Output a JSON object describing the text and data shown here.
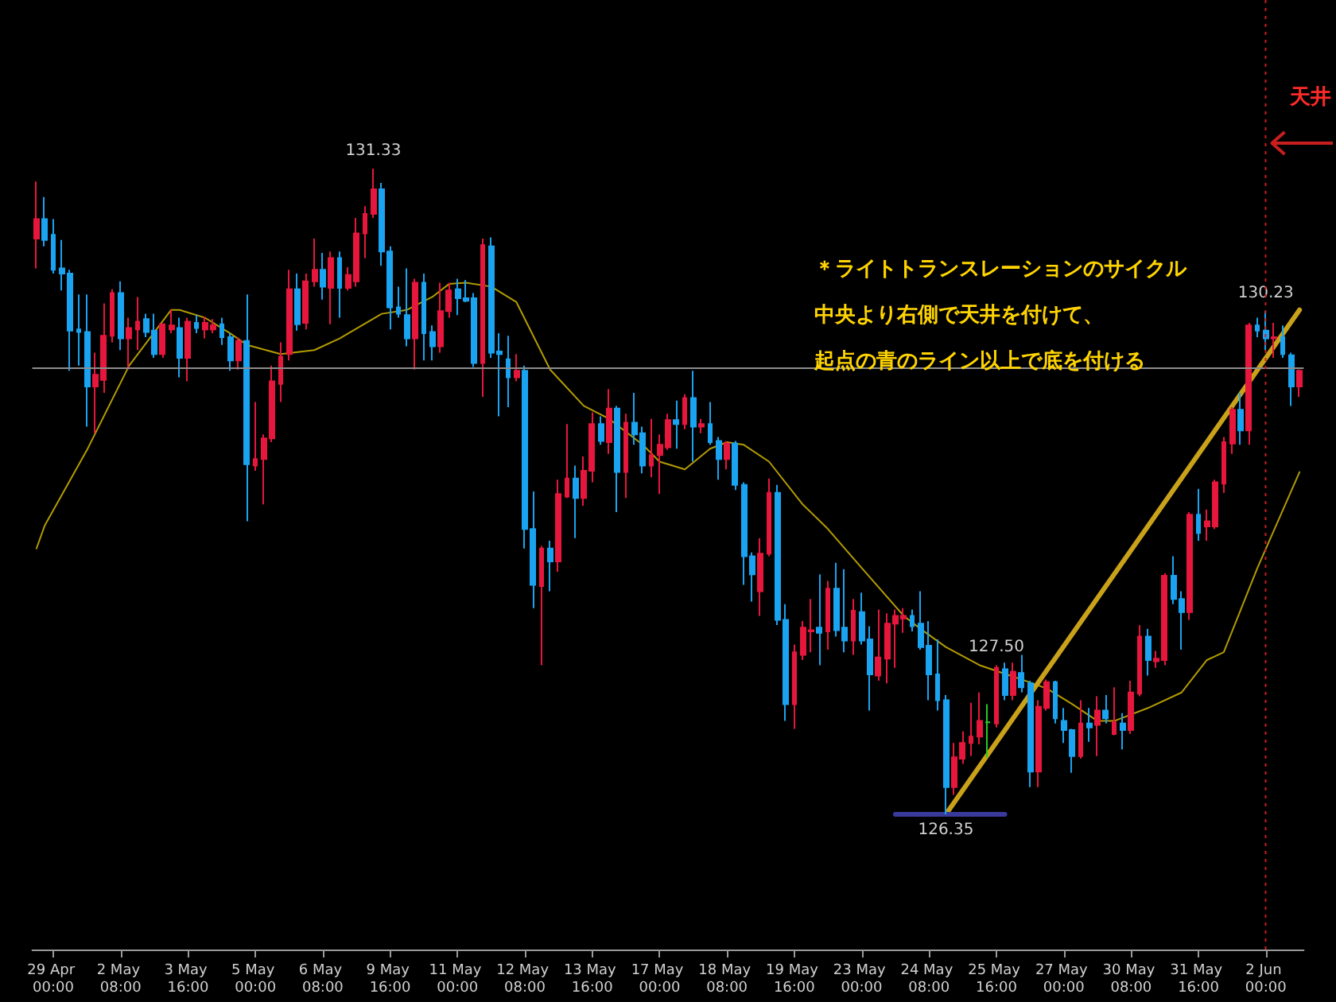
{
  "chart_data": {
    "type": "candlestick",
    "categories": [
      null,
      null,
      "29 Apr 00:00",
      null,
      null,
      null,
      null,
      null,
      null,
      null,
      "2 May 08:00",
      null,
      null,
      null,
      null,
      null,
      null,
      null,
      "3 May 16:00",
      null,
      null,
      null,
      null,
      null,
      null,
      null,
      "5 May 00:00",
      null,
      null,
      null,
      null,
      null,
      null,
      null,
      "6 May 08:00",
      null,
      null,
      null,
      null,
      null,
      null,
      null,
      "9 May 16:00",
      null,
      null,
      null,
      null,
      null,
      null,
      null,
      "11 May 00:00",
      null,
      null,
      null,
      null,
      null,
      null,
      null,
      "12 May 08:00",
      null,
      null,
      null,
      null,
      null,
      null,
      null,
      "13 May 16:00",
      null,
      null,
      null,
      null,
      null,
      null,
      null,
      "17 May 00:00",
      null,
      null,
      null,
      null,
      null,
      null,
      null,
      "18 May 08:00",
      null,
      null,
      null,
      null,
      null,
      null,
      null,
      "19 May 16:00",
      null,
      null,
      null,
      null,
      null,
      null,
      null,
      "23 May 00:00",
      null,
      null,
      null,
      null,
      null,
      null,
      null,
      "24 May 08:00",
      null,
      null,
      null,
      null,
      null,
      null,
      null,
      "25 May 16:00",
      null,
      null,
      null,
      null,
      null,
      null,
      null,
      "27 May 00:00",
      null,
      null,
      null,
      null,
      null,
      null,
      null,
      "30 May 08:00",
      null,
      null,
      null,
      null,
      null,
      null,
      null,
      "31 May 16:00",
      null,
      null,
      null,
      null,
      null,
      null,
      null,
      "2 Jun 00:00",
      null,
      null,
      null,
      null
    ],
    "series": [
      {
        "ohlc": [
          [
            130.79,
            131.23,
            130.56,
            130.94
          ],
          [
            130.94,
            131.11,
            130.73,
            130.78
          ],
          [
            130.82,
            130.94,
            130.52,
            130.55
          ],
          [
            130.56,
            130.78,
            130.39,
            130.52
          ],
          [
            130.52,
            130.55,
            129.77,
            130.08
          ],
          [
            130.09,
            130.36,
            129.81,
            130.07
          ],
          [
            130.07,
            130.36,
            129.34,
            129.65
          ],
          [
            129.65,
            129.91,
            129.29,
            129.74
          ],
          [
            129.7,
            130.29,
            129.6,
            130.04
          ],
          [
            130.04,
            130.4,
            129.99,
            130.37
          ],
          [
            130.37,
            130.46,
            129.93,
            130.02
          ],
          [
            130.02,
            130.18,
            129.78,
            130.1
          ],
          [
            130.09,
            130.34,
            129.93,
            130.15
          ],
          [
            130.17,
            130.21,
            130.03,
            130.07
          ],
          [
            130.08,
            130.21,
            129.87,
            129.9
          ],
          [
            129.9,
            130.13,
            129.87,
            130.13
          ],
          [
            130.09,
            130.24,
            130.06,
            130.12
          ],
          [
            130.1,
            130.18,
            129.72,
            129.87
          ],
          [
            129.87,
            130.18,
            129.69,
            130.15
          ],
          [
            130.14,
            130.2,
            130.06,
            130.1
          ],
          [
            130.09,
            130.19,
            130.02,
            130.14
          ],
          [
            130.09,
            130.17,
            130.06,
            130.12
          ],
          [
            130.13,
            130.18,
            129.97,
            130.03
          ],
          [
            130.03,
            130.06,
            129.77,
            129.85
          ],
          [
            129.85,
            130.03,
            129.78,
            130.0
          ],
          [
            130.0,
            130.36,
            128.61,
            129.05
          ],
          [
            129.04,
            129.53,
            129.0,
            129.09
          ],
          [
            129.09,
            129.28,
            128.74,
            129.25
          ],
          [
            129.25,
            129.81,
            129.22,
            129.69
          ],
          [
            129.67,
            129.99,
            129.53,
            129.88
          ],
          [
            129.9,
            130.55,
            129.85,
            130.4
          ],
          [
            130.4,
            130.52,
            130.08,
            130.13
          ],
          [
            130.14,
            130.52,
            130.09,
            130.46
          ],
          [
            130.46,
            130.79,
            130.42,
            130.55
          ],
          [
            130.55,
            130.68,
            130.32,
            130.42
          ],
          [
            130.41,
            130.69,
            130.13,
            130.64
          ],
          [
            130.64,
            130.69,
            130.18,
            130.41
          ],
          [
            130.41,
            130.57,
            130.39,
            130.51
          ],
          [
            130.46,
            130.95,
            130.42,
            130.83
          ],
          [
            130.83,
            131.04,
            130.64,
            130.98
          ],
          [
            130.98,
            131.33,
            130.95,
            131.17
          ],
          [
            131.17,
            131.22,
            130.58,
            130.69
          ],
          [
            130.69,
            130.73,
            130.09,
            130.26
          ],
          [
            130.26,
            130.42,
            130.18,
            130.21
          ],
          [
            130.2,
            130.56,
            129.96,
            130.02
          ],
          [
            130.02,
            130.48,
            129.78,
            130.45
          ],
          [
            130.45,
            130.52,
            129.85,
            130.06
          ],
          [
            130.07,
            130.12,
            129.85,
            129.96
          ],
          [
            129.96,
            130.45,
            129.91,
            130.23
          ],
          [
            130.23,
            130.45,
            130.18,
            130.39
          ],
          [
            130.4,
            130.48,
            130.2,
            130.33
          ],
          [
            130.33,
            130.47,
            130.3,
            130.31
          ],
          [
            130.33,
            130.37,
            129.8,
            129.83
          ],
          [
            129.83,
            130.79,
            129.57,
            130.74
          ],
          [
            130.73,
            130.8,
            129.87,
            129.91
          ],
          [
            129.92,
            130.06,
            129.42,
            129.9
          ],
          [
            129.86,
            130.04,
            129.49,
            129.72
          ],
          [
            129.72,
            129.9,
            129.69,
            129.77
          ],
          [
            129.77,
            129.81,
            128.4,
            128.55
          ],
          [
            128.55,
            128.84,
            127.94,
            128.12
          ],
          [
            128.11,
            128.42,
            127.5,
            128.4
          ],
          [
            128.4,
            128.46,
            128.07,
            128.3
          ],
          [
            128.3,
            128.93,
            128.22,
            128.82
          ],
          [
            128.8,
            129.36,
            128.79,
            128.94
          ],
          [
            128.94,
            129.04,
            128.48,
            128.79
          ],
          [
            128.79,
            129.11,
            128.73,
            129.0
          ],
          [
            129.0,
            129.45,
            128.91,
            129.36
          ],
          [
            129.36,
            129.42,
            129.2,
            129.23
          ],
          [
            129.22,
            129.63,
            129.13,
            129.48
          ],
          [
            129.48,
            129.5,
            128.68,
            128.99
          ],
          [
            128.99,
            129.44,
            128.79,
            129.37
          ],
          [
            129.37,
            129.6,
            129.2,
            129.28
          ],
          [
            129.29,
            129.34,
            128.98,
            129.04
          ],
          [
            129.04,
            129.4,
            128.95,
            129.12
          ],
          [
            129.12,
            129.28,
            128.82,
            129.2
          ],
          [
            129.18,
            129.44,
            129.16,
            129.39
          ],
          [
            129.39,
            129.54,
            129.17,
            129.36
          ],
          [
            129.36,
            129.59,
            129.32,
            129.56
          ],
          [
            129.56,
            129.77,
            129.07,
            129.34
          ],
          [
            129.34,
            129.4,
            129.29,
            129.36
          ],
          [
            129.36,
            129.53,
            129.2,
            129.22
          ],
          [
            129.23,
            129.26,
            128.93,
            129.09
          ],
          [
            129.09,
            129.23,
            129.01,
            129.21
          ],
          [
            129.21,
            129.23,
            128.85,
            128.89
          ],
          [
            128.89,
            128.91,
            128.12,
            128.34
          ],
          [
            128.34,
            128.37,
            127.99,
            128.2
          ],
          [
            128.07,
            128.48,
            127.88,
            128.36
          ],
          [
            128.36,
            128.94,
            128.34,
            128.83
          ],
          [
            128.83,
            128.89,
            127.81,
            127.85
          ],
          [
            127.85,
            127.97,
            127.07,
            127.2
          ],
          [
            127.2,
            127.66,
            127.01,
            127.6
          ],
          [
            127.58,
            127.84,
            127.54,
            127.79
          ],
          [
            127.76,
            128.01,
            127.6,
            127.77
          ],
          [
            127.79,
            128.2,
            127.5,
            127.75
          ],
          [
            127.76,
            128.15,
            127.62,
            128.09
          ],
          [
            128.09,
            128.29,
            127.72,
            127.77
          ],
          [
            127.79,
            128.24,
            127.6,
            127.69
          ],
          [
            127.69,
            128.01,
            127.58,
            127.92
          ],
          [
            127.91,
            128.06,
            127.66,
            127.69
          ],
          [
            127.7,
            127.8,
            127.15,
            127.43
          ],
          [
            127.42,
            127.93,
            127.38,
            127.56
          ],
          [
            127.55,
            127.9,
            127.36,
            127.82
          ],
          [
            127.82,
            127.93,
            127.48,
            127.88
          ],
          [
            127.86,
            127.94,
            127.75,
            127.88
          ],
          [
            127.88,
            127.93,
            127.76,
            127.8
          ],
          [
            127.82,
            128.07,
            127.62,
            127.64
          ],
          [
            127.65,
            127.84,
            127.23,
            127.43
          ],
          [
            127.43,
            127.7,
            127.15,
            127.23
          ],
          [
            127.23,
            127.27,
            126.35,
            126.56
          ],
          [
            126.56,
            126.9,
            126.5,
            126.79
          ],
          [
            126.78,
            126.99,
            126.74,
            126.9
          ],
          [
            126.9,
            127.21,
            126.8,
            126.95
          ],
          [
            126.95,
            127.29,
            126.89,
            127.07
          ],
          [
            127.06,
            127.2,
            126.79,
            127.06
          ],
          [
            127.05,
            127.5,
            127.02,
            127.48
          ],
          [
            127.47,
            127.52,
            127.23,
            127.27
          ],
          [
            127.27,
            127.52,
            127.23,
            127.45
          ],
          [
            127.44,
            127.58,
            127.29,
            127.33
          ],
          [
            127.36,
            127.38,
            126.56,
            126.68
          ],
          [
            126.68,
            127.23,
            126.56,
            127.18
          ],
          [
            127.17,
            127.39,
            127.15,
            127.37
          ],
          [
            127.37,
            127.38,
            127.05,
            127.09
          ],
          [
            127.07,
            127.17,
            126.9,
            127.0
          ],
          [
            127.0,
            127.01,
            126.67,
            126.8
          ],
          [
            126.8,
            127.23,
            126.78,
            127.05
          ],
          [
            127.05,
            127.17,
            126.91,
            127.02
          ],
          [
            127.04,
            127.26,
            126.8,
            127.15
          ],
          [
            127.15,
            127.27,
            127.05,
            127.09
          ],
          [
            126.97,
            127.33,
            126.96,
            127.06
          ],
          [
            127.05,
            127.13,
            126.85,
            127.0
          ],
          [
            127.0,
            127.38,
            126.97,
            127.29
          ],
          [
            127.28,
            127.81,
            127.26,
            127.72
          ],
          [
            127.72,
            127.78,
            127.42,
            127.54
          ],
          [
            127.53,
            127.61,
            127.48,
            127.55
          ],
          [
            127.54,
            128.21,
            127.5,
            128.19
          ],
          [
            128.19,
            128.34,
            127.97,
            128.01
          ],
          [
            128.01,
            128.07,
            127.62,
            127.91
          ],
          [
            127.91,
            128.68,
            127.85,
            128.66
          ],
          [
            128.66,
            128.86,
            128.46,
            128.52
          ],
          [
            128.57,
            128.7,
            128.46,
            128.61
          ],
          [
            128.57,
            128.93,
            128.55,
            128.91
          ],
          [
            128.9,
            129.26,
            128.83,
            129.22
          ],
          [
            129.21,
            129.49,
            129.13,
            129.47
          ],
          [
            129.47,
            129.6,
            129.2,
            129.31
          ],
          [
            129.31,
            130.14,
            129.2,
            130.12
          ],
          [
            130.12,
            130.18,
            130.03,
            130.08
          ],
          [
            130.08,
            130.23,
            129.93,
            130.02
          ],
          [
            130.02,
            130.14,
            129.87,
            130.03
          ],
          [
            130.03,
            130.12,
            129.87,
            129.9
          ],
          [
            129.89,
            129.91,
            129.5,
            129.65
          ],
          [
            129.65,
            129.78,
            129.57,
            129.77
          ]
        ],
        "colors": [
          "#e6163c",
          "#1aa3f0",
          "#1aa3f0",
          "#1aa3f0",
          "#1aa3f0",
          "#1aa3f0",
          "#1aa3f0",
          "#e6163c",
          "#e6163c",
          "#e6163c",
          "#1aa3f0",
          "#e6163c",
          "#e6163c",
          "#1aa3f0",
          "#1aa3f0",
          "#e6163c",
          "#e6163c",
          "#1aa3f0",
          "#e6163c",
          "#1aa3f0",
          "#e6163c",
          "#e6163c",
          "#1aa3f0",
          "#1aa3f0",
          "#e6163c",
          "#1aa3f0",
          "#e6163c",
          "#e6163c",
          "#e6163c",
          "#e6163c",
          "#e6163c",
          "#1aa3f0",
          "#e6163c",
          "#e6163c",
          "#1aa3f0",
          "#e6163c",
          "#1aa3f0",
          "#e6163c",
          "#e6163c",
          "#e6163c",
          "#e6163c",
          "#1aa3f0",
          "#1aa3f0",
          "#1aa3f0",
          "#1aa3f0",
          "#e6163c",
          "#1aa3f0",
          "#1aa3f0",
          "#e6163c",
          "#e6163c",
          "#1aa3f0",
          "#1aa3f0",
          "#1aa3f0",
          "#e6163c",
          "#1aa3f0",
          "#1aa3f0",
          "#1aa3f0",
          "#e6163c",
          "#1aa3f0",
          "#1aa3f0",
          "#e6163c",
          "#1aa3f0",
          "#e6163c",
          "#e6163c",
          "#1aa3f0",
          "#e6163c",
          "#e6163c",
          "#1aa3f0",
          "#e6163c",
          "#1aa3f0",
          "#e6163c",
          "#1aa3f0",
          "#1aa3f0",
          "#e6163c",
          "#e6163c",
          "#e6163c",
          "#1aa3f0",
          "#e6163c",
          "#1aa3f0",
          "#e6163c",
          "#1aa3f0",
          "#1aa3f0",
          "#e6163c",
          "#1aa3f0",
          "#1aa3f0",
          "#1aa3f0",
          "#e6163c",
          "#e6163c",
          "#1aa3f0",
          "#1aa3f0",
          "#e6163c",
          "#e6163c",
          "#e6163c",
          "#1aa3f0",
          "#e6163c",
          "#1aa3f0",
          "#1aa3f0",
          "#e6163c",
          "#1aa3f0",
          "#1aa3f0",
          "#e6163c",
          "#e6163c",
          "#e6163c",
          "#e6163c",
          "#1aa3f0",
          "#1aa3f0",
          "#1aa3f0",
          "#1aa3f0",
          "#1aa3f0",
          "#e6163c",
          "#e6163c",
          "#e6163c",
          "#e6163c",
          "#22cc22",
          "#e6163c",
          "#1aa3f0",
          "#e6163c",
          "#1aa3f0",
          "#1aa3f0",
          "#e6163c",
          "#e6163c",
          "#1aa3f0",
          "#1aa3f0",
          "#1aa3f0",
          "#e6163c",
          "#1aa3f0",
          "#e6163c",
          "#1aa3f0",
          "#e6163c",
          "#1aa3f0",
          "#e6163c",
          "#e6163c",
          "#1aa3f0",
          "#e6163c",
          "#e6163c",
          "#1aa3f0",
          "#1aa3f0",
          "#e6163c",
          "#1aa3f0",
          "#e6163c",
          "#e6163c",
          "#e6163c",
          "#e6163c",
          "#1aa3f0",
          "#e6163c",
          "#1aa3f0",
          "#1aa3f0",
          "#e6163c",
          "#1aa3f0",
          "#1aa3f0",
          "#e6163c"
        ]
      },
      {
        "type": "line",
        "color": "#b39b00",
        "values": [
          128.4,
          128.58,
          null,
          null,
          null,
          null,
          129.16,
          null,
          null,
          null,
          null,
          129.81,
          null,
          null,
          null,
          null,
          130.24,
          130.24,
          null,
          null,
          130.18,
          null,
          null,
          130.06,
          null,
          129.97,
          null,
          null,
          null,
          129.9,
          null,
          null,
          null,
          129.93,
          null,
          null,
          130.02,
          null,
          null,
          null,
          null,
          130.21,
          null,
          null,
          130.24,
          null,
          null,
          130.34,
          null,
          130.44,
          null,
          130.45,
          null,
          null,
          130.42,
          null,
          null,
          130.3,
          null,
          null,
          null,
          129.78,
          null,
          null,
          null,
          129.5,
          null,
          null,
          129.4,
          null,
          null,
          null,
          129.2,
          null,
          129.07,
          null,
          null,
          129.01,
          null,
          null,
          129.17,
          null,
          129.22,
          null,
          129.2,
          null,
          null,
          129.07,
          null,
          null,
          null,
          128.74,
          null,
          null,
          128.55,
          null,
          null,
          null,
          128.25,
          null,
          null,
          null,
          null,
          127.88,
          null,
          127.78,
          null,
          null,
          127.64,
          null,
          null,
          null,
          127.5,
          null,
          null,
          null,
          null,
          127.39,
          null,
          null,
          127.32,
          null,
          null,
          127.2,
          null,
          null,
          127.07,
          null,
          127.07,
          null,
          null,
          null,
          127.17,
          null,
          null,
          null,
          127.29,
          null,
          null,
          127.54,
          null,
          127.6,
          null,
          null,
          null,
          128.25,
          null,
          null,
          null,
          null,
          128.99
        ]
      },
      {
        "type": "line",
        "color": "#c9a21a",
        "values": [
          null,
          null,
          null,
          null,
          null,
          null,
          null,
          null,
          null,
          null,
          null,
          null,
          null,
          null,
          null,
          null,
          null,
          null,
          null,
          null,
          null,
          null,
          null,
          null,
          null,
          null,
          null,
          null,
          null,
          null,
          null,
          null,
          null,
          null,
          null,
          null,
          null,
          null,
          null,
          null,
          null,
          null,
          null,
          null,
          null,
          null,
          null,
          null,
          null,
          null,
          null,
          null,
          null,
          null,
          null,
          null,
          null,
          null,
          null,
          null,
          null,
          null,
          null,
          null,
          null,
          null,
          null,
          null,
          null,
          null,
          null,
          null,
          null,
          null,
          null,
          null,
          null,
          null,
          null,
          null,
          null,
          null,
          null,
          null,
          null,
          null,
          null,
          null,
          null,
          null,
          null,
          null,
          null,
          null,
          null,
          null,
          null,
          null,
          null,
          null,
          null,
          null,
          null,
          null,
          null,
          null,
          null,
          null,
          126.35,
          null,
          null,
          null,
          null,
          null,
          null,
          null,
          null,
          null,
          null,
          null,
          null,
          null,
          null,
          null,
          null,
          null,
          null,
          null,
          null,
          null,
          null,
          null,
          null,
          null,
          null,
          null,
          null,
          null,
          null,
          null,
          null,
          null,
          null,
          null,
          null,
          null,
          null,
          null,
          null,
          null,
          130.24
        ]
      },
      {
        "type": "line",
        "color": "#3a3a9c",
        "values": [
          null,
          null,
          null,
          null,
          null,
          null,
          null,
          null,
          null,
          null,
          null,
          null,
          null,
          null,
          null,
          null,
          null,
          null,
          null,
          null,
          null,
          null,
          null,
          null,
          null,
          null,
          null,
          null,
          null,
          null,
          null,
          null,
          null,
          null,
          null,
          null,
          null,
          null,
          null,
          null,
          null,
          null,
          null,
          null,
          null,
          null,
          null,
          null,
          null,
          null,
          null,
          null,
          null,
          null,
          null,
          null,
          null,
          null,
          null,
          null,
          null,
          null,
          null,
          null,
          null,
          null,
          null,
          null,
          null,
          null,
          null,
          null,
          null,
          null,
          null,
          null,
          null,
          null,
          null,
          null,
          null,
          null,
          null,
          null,
          null,
          null,
          null,
          null,
          null,
          null,
          null,
          null,
          null,
          null,
          null,
          null,
          null,
          null,
          null,
          null,
          null,
          null,
          126.35,
          126.35,
          126.35,
          126.35,
          126.35,
          126.35,
          126.35,
          126.35,
          126.35,
          126.35,
          126.35,
          126.35,
          126.35,
          126.35,
          null,
          null,
          null,
          null,
          null,
          null,
          null,
          null,
          null,
          null,
          null,
          null,
          null,
          null,
          null,
          null,
          null,
          null,
          null,
          null,
          null,
          null,
          null,
          null,
          null,
          null,
          null,
          null,
          null,
          null,
          null,
          null,
          null,
          null,
          null
        ]
      }
    ],
    "ref_lines": [
      {
        "axis": "y",
        "value": 129.79,
        "color": "#8c8c8c"
      }
    ],
    "annotations": [
      "＊ライトトランスレーションのサイクル",
      "中央より右側で天井を付けて、",
      "起点の青のライン以上で底を付ける",
      "天井",
      {
        "text": "131.33",
        "y": 131.33
      },
      {
        "text": "127.50",
        "y": 127.5
      },
      {
        "text": "126.35",
        "y": 126.35
      },
      {
        "text": "130.23",
        "y": 130.23
      }
    ],
    "tick_labels": "x"
  }
}
